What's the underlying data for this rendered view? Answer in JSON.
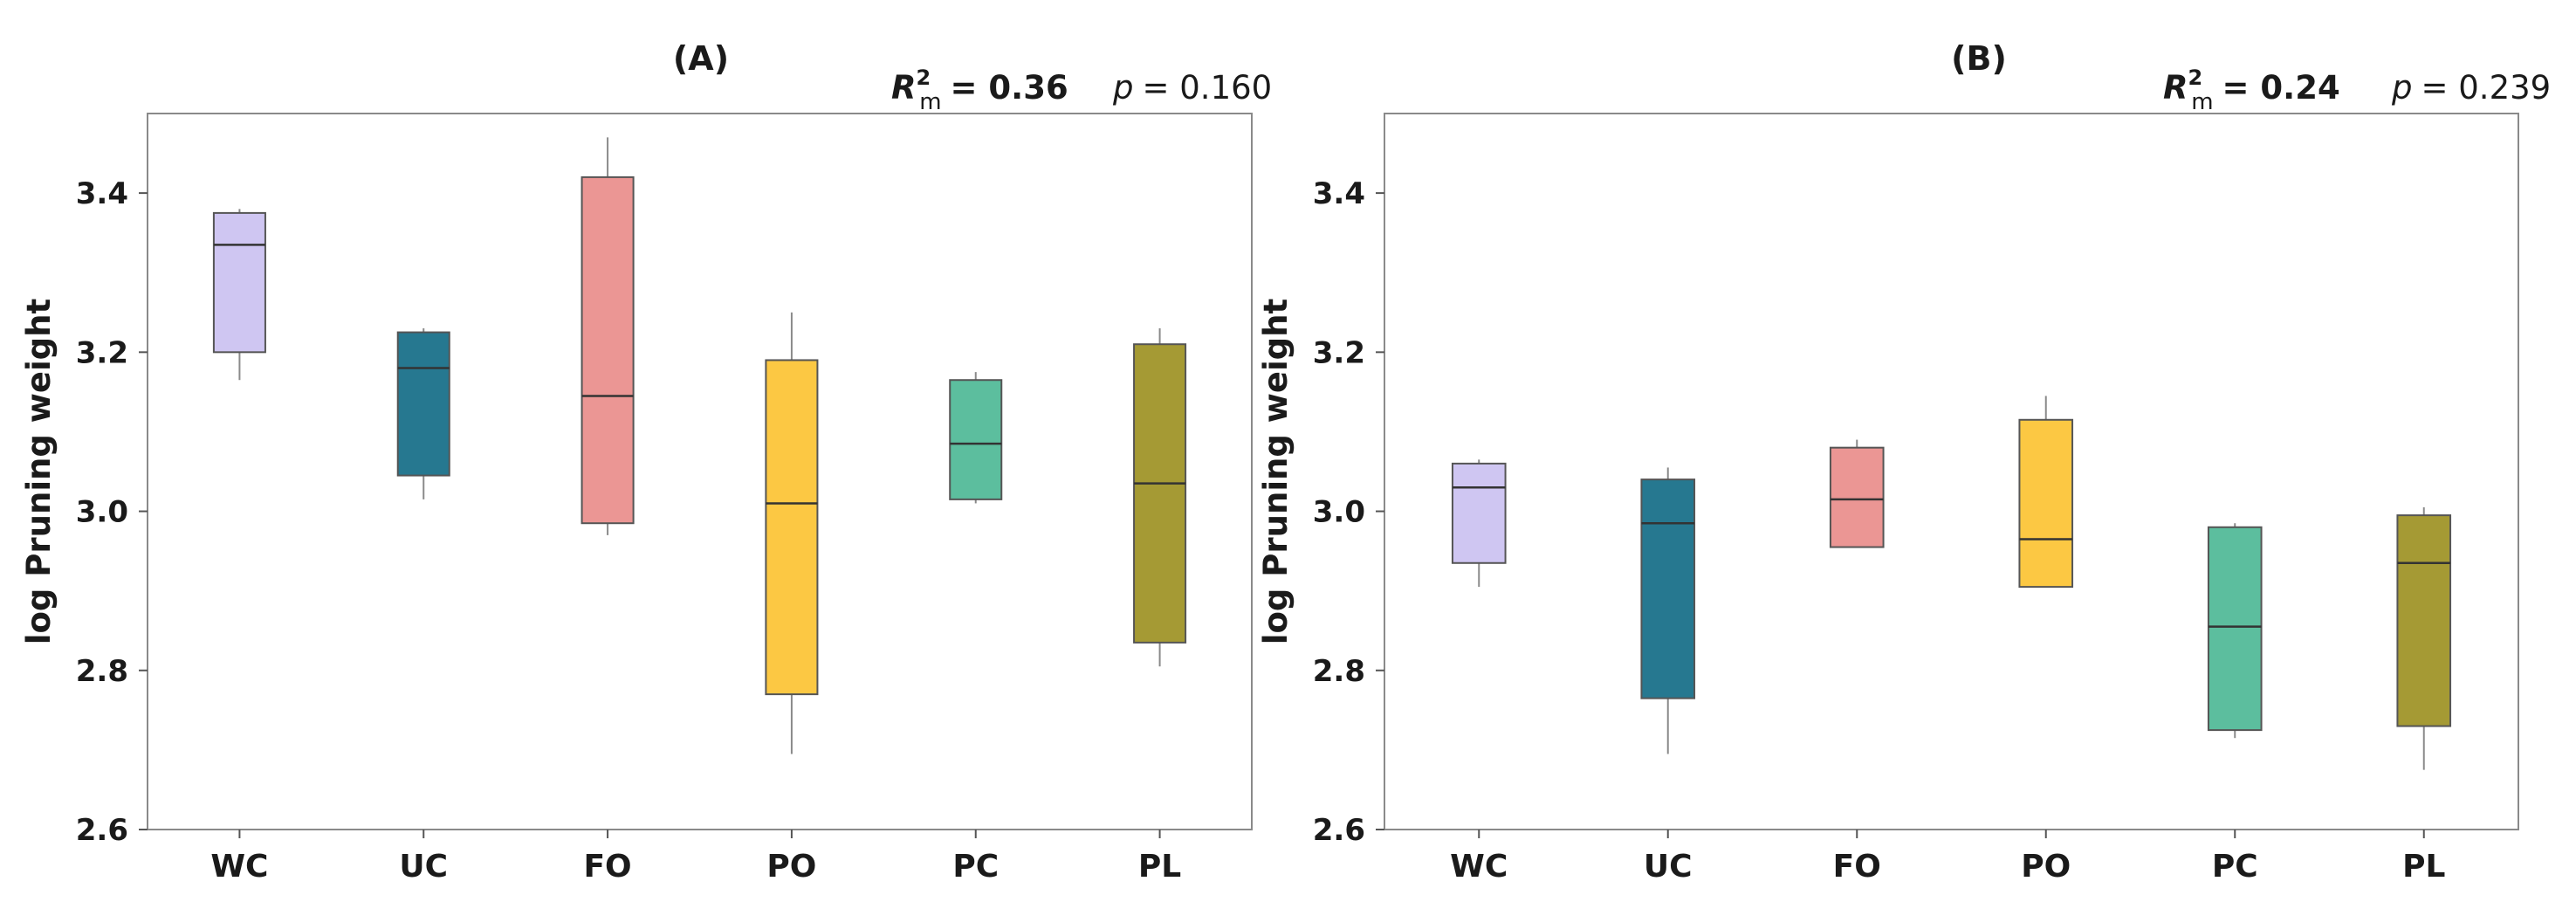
{
  "figure": {
    "ylabel": "log Pruning weight",
    "yticks": [
      "2.6",
      "2.8",
      "3.0",
      "3.2",
      "3.4"
    ],
    "ylim": [
      2.6,
      3.5
    ],
    "categories": [
      "WC",
      "UC",
      "FO",
      "PO",
      "PC",
      "PL"
    ],
    "colors": [
      "#cfc6f2",
      "#267890",
      "#eb9694",
      "#fcc843",
      "#5cbe9e",
      "#a59a34"
    ]
  },
  "chart_data": [
    {
      "type": "box",
      "panel": "(A)",
      "stats": {
        "r2_symbol": "R",
        "r2_sup": "2",
        "r2_sub": "m",
        "r2_value": "= 0.36",
        "p_symbol": "p",
        "p_value": "= 0.160"
      },
      "categories": [
        "WC",
        "UC",
        "FO",
        "PO",
        "PC",
        "PL"
      ],
      "boxes": [
        {
          "category": "WC",
          "whisker_low": 3.165,
          "q1": 3.2,
          "median": 3.335,
          "q3": 3.375,
          "whisker_high": 3.38
        },
        {
          "category": "UC",
          "whisker_low": 3.015,
          "q1": 3.045,
          "median": 3.18,
          "q3": 3.225,
          "whisker_high": 3.23
        },
        {
          "category": "FO",
          "whisker_low": 2.97,
          "q1": 2.985,
          "median": 3.145,
          "q3": 3.42,
          "whisker_high": 3.47
        },
        {
          "category": "PO",
          "whisker_low": 2.695,
          "q1": 2.77,
          "median": 3.01,
          "q3": 3.19,
          "whisker_high": 3.25
        },
        {
          "category": "PC",
          "whisker_low": 3.01,
          "q1": 3.015,
          "median": 3.085,
          "q3": 3.165,
          "whisker_high": 3.175
        },
        {
          "category": "PL",
          "whisker_low": 2.805,
          "q1": 2.835,
          "median": 3.035,
          "q3": 3.21,
          "whisker_high": 3.23
        }
      ]
    },
    {
      "type": "box",
      "panel": "(B)",
      "stats": {
        "r2_symbol": "R",
        "r2_sup": "2",
        "r2_sub": "m",
        "r2_value": "= 0.24",
        "p_symbol": "p",
        "p_value": "= 0.239"
      },
      "categories": [
        "WC",
        "UC",
        "FO",
        "PO",
        "PC",
        "PL"
      ],
      "boxes": [
        {
          "category": "WC",
          "whisker_low": 2.905,
          "q1": 2.935,
          "median": 3.03,
          "q3": 3.06,
          "whisker_high": 3.065
        },
        {
          "category": "UC",
          "whisker_low": 2.695,
          "q1": 2.765,
          "median": 2.985,
          "q3": 3.04,
          "whisker_high": 3.055
        },
        {
          "category": "FO",
          "whisker_low": 2.955,
          "q1": 2.955,
          "median": 3.015,
          "q3": 3.08,
          "whisker_high": 3.09
        },
        {
          "category": "PO",
          "whisker_low": 2.905,
          "q1": 2.905,
          "median": 2.965,
          "q3": 3.115,
          "whisker_high": 3.145
        },
        {
          "category": "PC",
          "whisker_low": 2.715,
          "q1": 2.725,
          "median": 2.855,
          "q3": 2.98,
          "whisker_high": 2.985
        },
        {
          "category": "PL",
          "whisker_low": 2.675,
          "q1": 2.73,
          "median": 2.935,
          "q3": 2.995,
          "whisker_high": 3.005
        }
      ]
    }
  ]
}
